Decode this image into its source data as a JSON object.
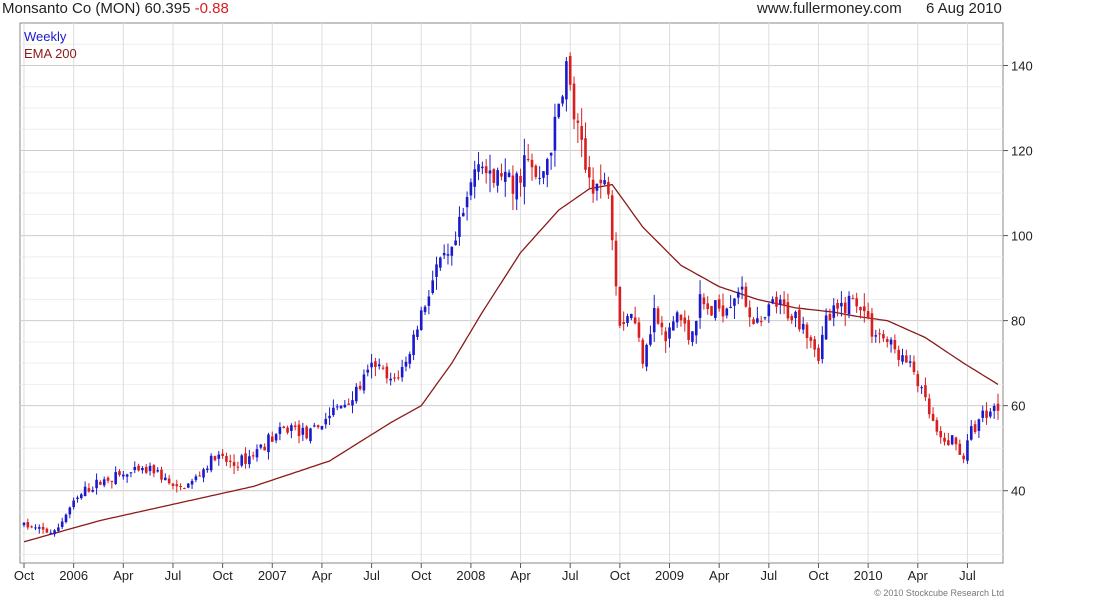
{
  "header": {
    "title": "Monsanto Co (MON)",
    "price": "60.395",
    "change": "-0.88",
    "site": "www.fullermoney.com",
    "date": "6 Aug 2010"
  },
  "colors": {
    "up": "#1a1acc",
    "down": "#d81e1e",
    "ema": "#8b1a1a",
    "grid": "#dddddd"
  },
  "copyright": "© 2010 Stockcube Research Ltd",
  "chart_data": {
    "type": "candlestick",
    "frequency": "weekly",
    "legend": [
      {
        "label": "Weekly",
        "color": "#1a1acc"
      },
      {
        "label": "EMA 200",
        "color": "#8b1a1a"
      }
    ],
    "legend_position": "top-left",
    "y_axis_position": "right",
    "grid": true,
    "ylim": [
      23,
      150
    ],
    "y_ticks": [
      40,
      60,
      80,
      100,
      120,
      140
    ],
    "x_ticks": [
      "Oct",
      "2006",
      "Apr",
      "Jul",
      "Oct",
      "2007",
      "Apr",
      "Jul",
      "Oct",
      "2008",
      "Apr",
      "Jul",
      "Oct",
      "2009",
      "Apr",
      "Jul",
      "Oct",
      "2010",
      "Apr",
      "Jul"
    ],
    "x_range_weeks": 255,
    "x_tick_weeks": [
      0,
      13,
      26,
      39,
      52,
      65,
      78,
      91,
      104,
      117,
      130,
      143,
      156,
      169,
      182,
      195,
      208,
      221,
      234,
      247
    ],
    "close_anchors": [
      [
        0,
        32
      ],
      [
        3,
        31
      ],
      [
        8,
        30
      ],
      [
        12,
        36
      ],
      [
        16,
        40
      ],
      [
        22,
        43
      ],
      [
        28,
        44
      ],
      [
        34,
        45
      ],
      [
        40,
        40
      ],
      [
        44,
        42
      ],
      [
        50,
        48
      ],
      [
        55,
        46
      ],
      [
        59,
        48
      ],
      [
        64,
        52
      ],
      [
        70,
        55
      ],
      [
        75,
        53
      ],
      [
        80,
        58
      ],
      [
        86,
        62
      ],
      [
        92,
        70
      ],
      [
        96,
        65
      ],
      [
        100,
        70
      ],
      [
        104,
        82
      ],
      [
        108,
        92
      ],
      [
        112,
        95
      ],
      [
        116,
        108
      ],
      [
        119,
        120
      ],
      [
        122,
        112
      ],
      [
        125,
        115
      ],
      [
        128,
        110
      ],
      [
        131,
        118
      ],
      [
        135,
        112
      ],
      [
        139,
        125
      ],
      [
        142,
        140
      ],
      [
        144,
        128
      ],
      [
        147,
        115
      ],
      [
        150,
        112
      ],
      [
        153,
        112
      ],
      [
        156,
        80
      ],
      [
        159,
        82
      ],
      [
        162,
        72
      ],
      [
        165,
        82
      ],
      [
        168,
        75
      ],
      [
        171,
        82
      ],
      [
        174,
        76
      ],
      [
        177,
        84
      ],
      [
        180,
        82
      ],
      [
        184,
        84
      ],
      [
        187,
        88
      ],
      [
        190,
        82
      ],
      [
        193,
        78
      ],
      [
        196,
        84
      ],
      [
        200,
        82
      ],
      [
        204,
        80
      ],
      [
        208,
        72
      ],
      [
        210,
        80
      ],
      [
        213,
        82
      ],
      [
        216,
        85
      ],
      [
        219,
        84
      ],
      [
        222,
        78
      ],
      [
        225,
        76
      ],
      [
        229,
        72
      ],
      [
        233,
        68
      ],
      [
        237,
        58
      ],
      [
        240,
        51
      ],
      [
        243,
        52
      ],
      [
        246,
        48
      ],
      [
        248,
        54
      ],
      [
        251,
        58
      ],
      [
        255,
        60
      ]
    ],
    "ema_anchors": [
      [
        0,
        28
      ],
      [
        20,
        33
      ],
      [
        40,
        37
      ],
      [
        60,
        41
      ],
      [
        80,
        47
      ],
      [
        96,
        56
      ],
      [
        104,
        60
      ],
      [
        112,
        70
      ],
      [
        120,
        82
      ],
      [
        130,
        96
      ],
      [
        140,
        106
      ],
      [
        148,
        111
      ],
      [
        154,
        112
      ],
      [
        162,
        102
      ],
      [
        172,
        93
      ],
      [
        182,
        88
      ],
      [
        192,
        85
      ],
      [
        202,
        83
      ],
      [
        212,
        82
      ],
      [
        218,
        81
      ],
      [
        226,
        80
      ],
      [
        236,
        76
      ],
      [
        246,
        70
      ],
      [
        255,
        65
      ]
    ]
  }
}
